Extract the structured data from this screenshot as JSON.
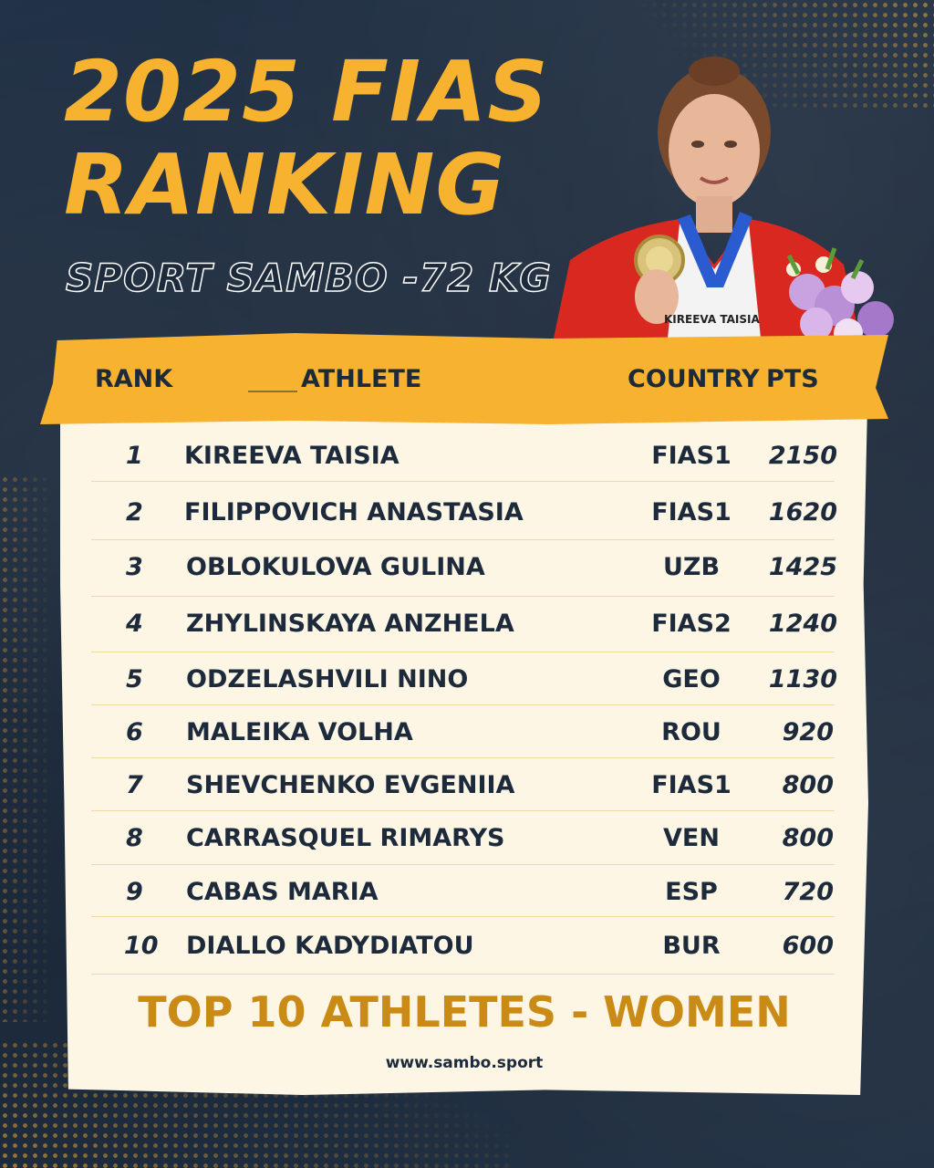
{
  "title_line1": "2025 FIAS",
  "title_line2": "RANKING",
  "subtitle": "SPORT SAMBO -72 KG",
  "photo_caption": "KIREEVA TAISIA",
  "columns": {
    "rank": "RANK",
    "athlete": "ATHLETE",
    "country": "COUNTRY",
    "pts": "PTS"
  },
  "rows": [
    {
      "rank": "1",
      "name": "KIREEVA TAISIA",
      "country": "FIAS1",
      "pts": "2150"
    },
    {
      "rank": "2",
      "name": "FILIPPOVICH ANASTASIA",
      "country": "FIAS1",
      "pts": "1620"
    },
    {
      "rank": "3",
      "name": "OBLOKULOVA GULINA",
      "country": "UZB",
      "pts": "1425"
    },
    {
      "rank": "4",
      "name": "ZHYLINSKAYA ANZHELA",
      "country": "FIAS2",
      "pts": "1240"
    },
    {
      "rank": "5",
      "name": "ODZELASHVILI NINO",
      "country": "GEO",
      "pts": "1130"
    },
    {
      "rank": "6",
      "name": "MALEIKA VOLHA",
      "country": "ROU",
      "pts": "920"
    },
    {
      "rank": "7",
      "name": "SHEVCHENKO EVGENIIA",
      "country": "FIAS1",
      "pts": "800"
    },
    {
      "rank": "8",
      "name": "CARRASQUEL RIMARYS",
      "country": "VEN",
      "pts": "800"
    },
    {
      "rank": "9",
      "name": "CABAS MARIA",
      "country": "ESP",
      "pts": "720"
    },
    {
      "rank": "10",
      "name": "DIALLO KADYDIATOU",
      "country": "BUR",
      "pts": "600"
    }
  ],
  "footer_title": "TOP 10 ATHLETES - WOMEN",
  "footer_url": "www.sambo.sport",
  "colors": {
    "accent": "#f7b230",
    "background": "#1c2a3b",
    "paper": "#fdf6e4",
    "footer_text": "#c98a16"
  }
}
